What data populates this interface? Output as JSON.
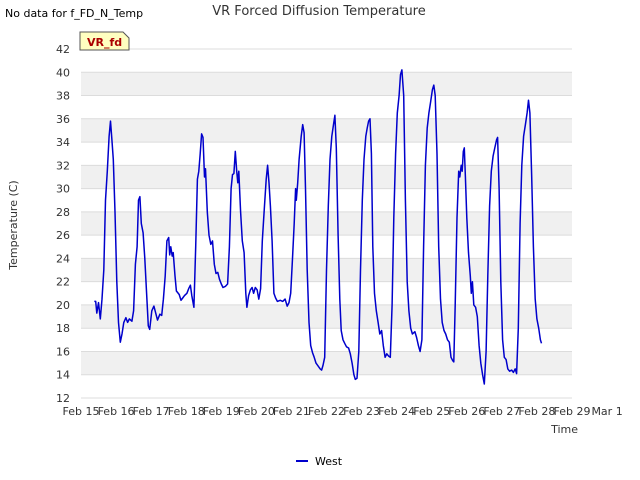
{
  "note": "No data for f_FD_N_Temp",
  "badge": "VR_fd",
  "chart_data": {
    "type": "line",
    "title": "VR Forced Diffusion Temperature",
    "xlabel": "Time",
    "ylabel": "Temperature (C)",
    "ylim": [
      12,
      42
    ],
    "yticks": [
      12,
      14,
      16,
      18,
      20,
      22,
      24,
      26,
      28,
      30,
      32,
      34,
      36,
      38,
      40,
      42
    ],
    "xlim": [
      0,
      14
    ],
    "xtick_labels": [
      "Feb 15",
      "Feb 16",
      "Feb 17",
      "Feb 18",
      "Feb 19",
      "Feb 20",
      "Feb 21",
      "Feb 22",
      "Feb 23",
      "Feb 24",
      "Feb 25",
      "Feb 26",
      "Feb 27",
      "Feb 28",
      "Feb 29",
      "Mar 1"
    ],
    "x_unit": "days since Feb 15",
    "grid": "horizontal bands",
    "legend_position": "bottom-center",
    "series": [
      {
        "name": "West",
        "color": "#0000cc",
        "points": [
          [
            0.38,
            20.3
          ],
          [
            0.42,
            20.3
          ],
          [
            0.45,
            19.3
          ],
          [
            0.5,
            20.2
          ],
          [
            0.55,
            18.8
          ],
          [
            0.6,
            20.5
          ],
          [
            0.65,
            23
          ],
          [
            0.7,
            29
          ],
          [
            0.75,
            31.5
          ],
          [
            0.8,
            34.5
          ],
          [
            0.84,
            35.8
          ],
          [
            0.88,
            34.2
          ],
          [
            0.92,
            32.5
          ],
          [
            0.97,
            28
          ],
          [
            1.02,
            22
          ],
          [
            1.07,
            18.5
          ],
          [
            1.12,
            16.8
          ],
          [
            1.17,
            17.5
          ],
          [
            1.22,
            18.5
          ],
          [
            1.28,
            18.9
          ],
          [
            1.33,
            18.5
          ],
          [
            1.38,
            18.8
          ],
          [
            1.45,
            18.6
          ],
          [
            1.5,
            19.5
          ],
          [
            1.55,
            23.5
          ],
          [
            1.6,
            25
          ],
          [
            1.64,
            29
          ],
          [
            1.68,
            29.3
          ],
          [
            1.72,
            27
          ],
          [
            1.77,
            26.2
          ],
          [
            1.82,
            24
          ],
          [
            1.87,
            21
          ],
          [
            1.92,
            18.2
          ],
          [
            1.96,
            17.9
          ],
          [
            2.02,
            19.5
          ],
          [
            2.08,
            19.9
          ],
          [
            2.13,
            19.3
          ],
          [
            2.18,
            18.7
          ],
          [
            2.25,
            19.2
          ],
          [
            2.3,
            19.1
          ],
          [
            2.35,
            20.5
          ],
          [
            2.4,
            22.5
          ],
          [
            2.45,
            25.5
          ],
          [
            2.5,
            25.8
          ],
          [
            2.53,
            24.3
          ],
          [
            2.56,
            25
          ],
          [
            2.6,
            24.2
          ],
          [
            2.63,
            24.5
          ],
          [
            2.68,
            22.5
          ],
          [
            2.72,
            21.2
          ],
          [
            2.8,
            20.9
          ],
          [
            2.85,
            20.4
          ],
          [
            2.9,
            20.6
          ],
          [
            2.95,
            20.8
          ],
          [
            3.02,
            21
          ],
          [
            3.07,
            21.4
          ],
          [
            3.12,
            21.7
          ],
          [
            3.16,
            20.8
          ],
          [
            3.22,
            19.8
          ],
          [
            3.27,
            25
          ],
          [
            3.32,
            30.8
          ],
          [
            3.36,
            31.5
          ],
          [
            3.4,
            33
          ],
          [
            3.44,
            34.7
          ],
          [
            3.48,
            34.4
          ],
          [
            3.52,
            31
          ],
          [
            3.55,
            31.7
          ],
          [
            3.6,
            28
          ],
          [
            3.65,
            26
          ],
          [
            3.7,
            25.2
          ],
          [
            3.75,
            25.5
          ],
          [
            3.8,
            23.5
          ],
          [
            3.85,
            22.7
          ],
          [
            3.9,
            22.8
          ],
          [
            3.95,
            22.2
          ],
          [
            4.0,
            21.8
          ],
          [
            4.05,
            21.5
          ],
          [
            4.12,
            21.6
          ],
          [
            4.18,
            21.8
          ],
          [
            4.23,
            25
          ],
          [
            4.28,
            30
          ],
          [
            4.32,
            31.2
          ],
          [
            4.36,
            31.3
          ],
          [
            4.4,
            33.2
          ],
          [
            4.44,
            31.5
          ],
          [
            4.47,
            30.5
          ],
          [
            4.5,
            31.5
          ],
          [
            4.55,
            28
          ],
          [
            4.6,
            25.5
          ],
          [
            4.65,
            24.5
          ],
          [
            4.7,
            21
          ],
          [
            4.73,
            19.8
          ],
          [
            4.78,
            20.8
          ],
          [
            4.83,
            21.3
          ],
          [
            4.88,
            21.5
          ],
          [
            4.92,
            21
          ],
          [
            4.97,
            21.5
          ],
          [
            5.02,
            21.3
          ],
          [
            5.07,
            20.5
          ],
          [
            5.12,
            21.4
          ],
          [
            5.17,
            25.5
          ],
          [
            5.22,
            28
          ],
          [
            5.28,
            30.8
          ],
          [
            5.32,
            32
          ],
          [
            5.36,
            30.5
          ],
          [
            5.4,
            28.5
          ],
          [
            5.45,
            25.5
          ],
          [
            5.5,
            21
          ],
          [
            5.55,
            20.6
          ],
          [
            5.6,
            20.3
          ],
          [
            5.68,
            20.4
          ],
          [
            5.75,
            20.3
          ],
          [
            5.82,
            20.5
          ],
          [
            5.88,
            19.9
          ],
          [
            5.93,
            20.2
          ],
          [
            5.98,
            21
          ],
          [
            6.03,
            24
          ],
          [
            6.08,
            27
          ],
          [
            6.12,
            30
          ],
          [
            6.14,
            29
          ],
          [
            6.18,
            30.5
          ],
          [
            6.22,
            32.5
          ],
          [
            6.28,
            34.5
          ],
          [
            6.32,
            35.5
          ],
          [
            6.36,
            34.8
          ],
          [
            6.4,
            30
          ],
          [
            6.45,
            23
          ],
          [
            6.5,
            18.5
          ],
          [
            6.55,
            16.5
          ],
          [
            6.6,
            15.9
          ],
          [
            6.65,
            15.5
          ],
          [
            6.7,
            15
          ],
          [
            6.75,
            14.8
          ],
          [
            6.82,
            14.5
          ],
          [
            6.86,
            14.4
          ],
          [
            6.9,
            14.8
          ],
          [
            6.95,
            15.5
          ],
          [
            7.0,
            23
          ],
          [
            7.05,
            28.5
          ],
          [
            7.1,
            32.5
          ],
          [
            7.15,
            34.5
          ],
          [
            7.2,
            35.5
          ],
          [
            7.24,
            36.3
          ],
          [
            7.28,
            33.5
          ],
          [
            7.33,
            26
          ],
          [
            7.38,
            20.5
          ],
          [
            7.42,
            17.8
          ],
          [
            7.47,
            17
          ],
          [
            7.52,
            16.7
          ],
          [
            7.57,
            16.4
          ],
          [
            7.63,
            16.3
          ],
          [
            7.68,
            15.8
          ],
          [
            7.73,
            15
          ],
          [
            7.78,
            14
          ],
          [
            7.82,
            13.6
          ],
          [
            7.87,
            13.7
          ],
          [
            7.92,
            16
          ],
          [
            7.97,
            23
          ],
          [
            8.02,
            29
          ],
          [
            8.07,
            32.5
          ],
          [
            8.12,
            34.5
          ],
          [
            8.16,
            35.2
          ],
          [
            8.2,
            35.8
          ],
          [
            8.24,
            36
          ],
          [
            8.28,
            33
          ],
          [
            8.32,
            25
          ],
          [
            8.37,
            21
          ],
          [
            8.42,
            19.5
          ],
          [
            8.47,
            18.5
          ],
          [
            8.52,
            17.5
          ],
          [
            8.57,
            17.8
          ],
          [
            8.62,
            16.5
          ],
          [
            8.67,
            15.5
          ],
          [
            8.72,
            15.8
          ],
          [
            8.77,
            15.6
          ],
          [
            8.82,
            15.5
          ],
          [
            8.87,
            20
          ],
          [
            8.92,
            27.5
          ],
          [
            8.97,
            33
          ],
          [
            9.02,
            36.5
          ],
          [
            9.07,
            38
          ],
          [
            9.11,
            39.8
          ],
          [
            9.15,
            40.2
          ],
          [
            9.2,
            38
          ],
          [
            9.25,
            29
          ],
          [
            9.3,
            22
          ],
          [
            9.35,
            19.5
          ],
          [
            9.4,
            18
          ],
          [
            9.45,
            17.5
          ],
          [
            9.52,
            17.7
          ],
          [
            9.57,
            17.2
          ],
          [
            9.62,
            16.5
          ],
          [
            9.67,
            16
          ],
          [
            9.72,
            17
          ],
          [
            9.77,
            25
          ],
          [
            9.82,
            32
          ],
          [
            9.87,
            35.2
          ],
          [
            9.92,
            36.5
          ],
          [
            9.97,
            37.5
          ],
          [
            10.02,
            38.5
          ],
          [
            10.06,
            38.9
          ],
          [
            10.1,
            38
          ],
          [
            10.15,
            33
          ],
          [
            10.2,
            25
          ],
          [
            10.25,
            20.5
          ],
          [
            10.3,
            18.5
          ],
          [
            10.35,
            17.8
          ],
          [
            10.4,
            17.5
          ],
          [
            10.45,
            17
          ],
          [
            10.5,
            16.8
          ],
          [
            10.55,
            15.5
          ],
          [
            10.6,
            15.2
          ],
          [
            10.63,
            15.1
          ],
          [
            10.67,
            20
          ],
          [
            10.72,
            27.5
          ],
          [
            10.77,
            31.5
          ],
          [
            10.8,
            31
          ],
          [
            10.84,
            32
          ],
          [
            10.87,
            31.5
          ],
          [
            10.9,
            33.2
          ],
          [
            10.93,
            33.5
          ],
          [
            10.96,
            31
          ],
          [
            11.0,
            27.5
          ],
          [
            11.05,
            24.5
          ],
          [
            11.1,
            22.5
          ],
          [
            11.13,
            21
          ],
          [
            11.16,
            22
          ],
          [
            11.2,
            20
          ],
          [
            11.25,
            19.8
          ],
          [
            11.3,
            19
          ],
          [
            11.35,
            16.5
          ],
          [
            11.4,
            15
          ],
          [
            11.45,
            14
          ],
          [
            11.5,
            13.2
          ],
          [
            11.55,
            16
          ],
          [
            11.6,
            22.5
          ],
          [
            11.65,
            28.5
          ],
          [
            11.7,
            31.5
          ],
          [
            11.75,
            32.8
          ],
          [
            11.8,
            33.5
          ],
          [
            11.85,
            34.2
          ],
          [
            11.88,
            34.4
          ],
          [
            11.92,
            30
          ],
          [
            11.97,
            22
          ],
          [
            12.02,
            17
          ],
          [
            12.07,
            15.5
          ],
          [
            12.12,
            15.3
          ],
          [
            12.17,
            14.5
          ],
          [
            12.22,
            14.3
          ],
          [
            12.28,
            14.4
          ],
          [
            12.33,
            14.2
          ],
          [
            12.38,
            14.5
          ],
          [
            12.42,
            14.1
          ],
          [
            12.47,
            18
          ],
          [
            12.52,
            27
          ],
          [
            12.57,
            32
          ],
          [
            12.62,
            34.5
          ],
          [
            12.67,
            35.5
          ],
          [
            12.72,
            36.5
          ],
          [
            12.76,
            37.6
          ],
          [
            12.8,
            36.5
          ],
          [
            12.85,
            31
          ],
          [
            12.9,
            25
          ],
          [
            12.95,
            20.5
          ],
          [
            13.0,
            18.8
          ],
          [
            13.05,
            18
          ],
          [
            13.1,
            17
          ],
          [
            13.13,
            16.7
          ]
        ]
      }
    ]
  }
}
